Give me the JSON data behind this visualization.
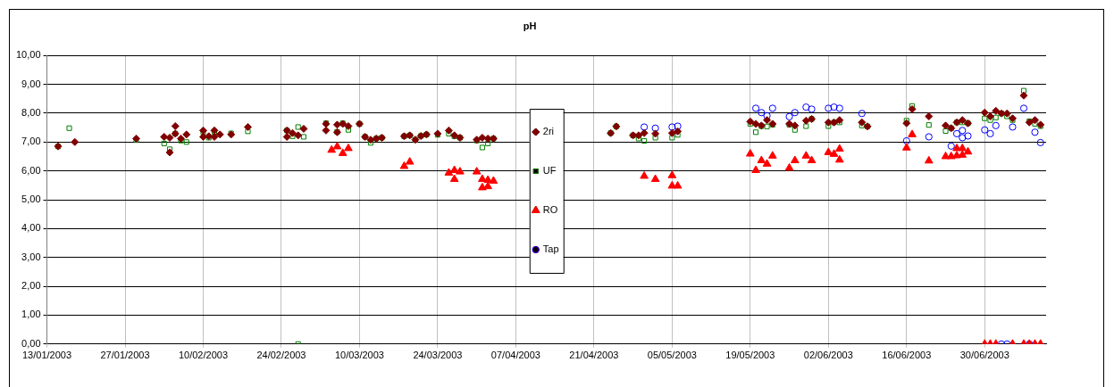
{
  "chart_data": {
    "type": "scatter",
    "title": "pH",
    "legend": "center",
    "grid": true,
    "xlim": [
      "2003-01-13",
      "2003-07-11"
    ],
    "xticks": [
      {
        "value": "2003-01-13",
        "label": "13/01/2003"
      },
      {
        "value": "2003-01-27",
        "label": "27/01/2003"
      },
      {
        "value": "2003-02-10",
        "label": "10/02/2003"
      },
      {
        "value": "2003-02-24",
        "label": "24/02/2003"
      },
      {
        "value": "2003-03-10",
        "label": "10/03/2003"
      },
      {
        "value": "2003-03-24",
        "label": "24/03/2003"
      },
      {
        "value": "2003-04-07",
        "label": "07/04/2003"
      },
      {
        "value": "2003-04-21",
        "label": "21/04/2003"
      },
      {
        "value": "2003-05-05",
        "label": "05/05/2003"
      },
      {
        "value": "2003-05-19",
        "label": "19/05/2003"
      },
      {
        "value": "2003-06-02",
        "label": "02/06/2003"
      },
      {
        "value": "2003-06-16",
        "label": "16/06/2003"
      },
      {
        "value": "2003-06-30",
        "label": "30/06/2003"
      }
    ],
    "ylim": [
      0,
      10
    ],
    "yticks": [
      {
        "value": 0,
        "label": "0,00"
      },
      {
        "value": 1,
        "label": "1,00"
      },
      {
        "value": 2,
        "label": "2,00"
      },
      {
        "value": 3,
        "label": "3,00"
      },
      {
        "value": 4,
        "label": "4,00"
      },
      {
        "value": 5,
        "label": "5,00"
      },
      {
        "value": 6,
        "label": "6,00"
      },
      {
        "value": 7,
        "label": "7,00"
      },
      {
        "value": 8,
        "label": "8,00"
      },
      {
        "value": 9,
        "label": "9,00"
      },
      {
        "value": 10,
        "label": "10,00"
      }
    ],
    "series": [
      {
        "name": "2ri",
        "color": "#800000",
        "marker": "diamond",
        "x": [
          "2003-01-15",
          "2003-01-18",
          "2003-01-29",
          "2003-02-03",
          "2003-02-04",
          "2003-02-04",
          "2003-02-05",
          "2003-02-05",
          "2003-02-06",
          "2003-02-07",
          "2003-02-10",
          "2003-02-10",
          "2003-02-11",
          "2003-02-12",
          "2003-02-12",
          "2003-02-13",
          "2003-02-15",
          "2003-02-18",
          "2003-02-25",
          "2003-02-25",
          "2003-02-26",
          "2003-02-27",
          "2003-02-28",
          "2003-03-04",
          "2003-03-04",
          "2003-03-06",
          "2003-03-06",
          "2003-03-07",
          "2003-03-08",
          "2003-03-10",
          "2003-03-11",
          "2003-03-12",
          "2003-03-13",
          "2003-03-14",
          "2003-03-18",
          "2003-03-19",
          "2003-03-20",
          "2003-03-21",
          "2003-03-22",
          "2003-03-24",
          "2003-03-26",
          "2003-03-27",
          "2003-03-28",
          "2003-03-31",
          "2003-04-01",
          "2003-04-02",
          "2003-04-03",
          "2003-04-24",
          "2003-04-25",
          "2003-04-28",
          "2003-04-29",
          "2003-04-30",
          "2003-05-02",
          "2003-05-05",
          "2003-05-06",
          "2003-05-19",
          "2003-05-20",
          "2003-05-21",
          "2003-05-22",
          "2003-05-23",
          "2003-05-26",
          "2003-05-27",
          "2003-05-29",
          "2003-05-30",
          "2003-06-02",
          "2003-06-03",
          "2003-06-04",
          "2003-06-08",
          "2003-06-09",
          "2003-06-16",
          "2003-06-17",
          "2003-06-20",
          "2003-06-23",
          "2003-06-24",
          "2003-06-25",
          "2003-06-26",
          "2003-06-27",
          "2003-06-30",
          "2003-07-01",
          "2003-07-02",
          "2003-07-03",
          "2003-07-04",
          "2003-07-05",
          "2003-07-07",
          "2003-07-08",
          "2003-07-09",
          "2003-07-10"
        ],
        "values": [
          6.85,
          7.0,
          7.12,
          7.18,
          7.15,
          6.64,
          7.55,
          7.29,
          7.12,
          7.26,
          7.4,
          7.18,
          7.2,
          7.4,
          7.18,
          7.26,
          7.26,
          7.52,
          7.4,
          7.18,
          7.31,
          7.23,
          7.46,
          7.63,
          7.4,
          7.6,
          7.34,
          7.63,
          7.55,
          7.63,
          7.18,
          7.08,
          7.12,
          7.15,
          7.2,
          7.23,
          7.08,
          7.21,
          7.26,
          7.29,
          7.4,
          7.23,
          7.15,
          7.08,
          7.15,
          7.12,
          7.12,
          7.31,
          7.54,
          7.23,
          7.23,
          7.31,
          7.29,
          7.31,
          7.37,
          7.71,
          7.63,
          7.57,
          7.76,
          7.63,
          7.63,
          7.57,
          7.74,
          7.8,
          7.68,
          7.68,
          7.76,
          7.68,
          7.54,
          7.65,
          8.14,
          7.89,
          7.57,
          7.48,
          7.68,
          7.76,
          7.65,
          8.02,
          7.89,
          8.08,
          7.99,
          7.99,
          7.82,
          8.61,
          7.68,
          7.76,
          7.6
        ]
      },
      {
        "name": "UF",
        "color": "#008000",
        "marker": "square",
        "x": [
          "2003-01-15",
          "2003-01-17",
          "2003-01-29",
          "2003-02-03",
          "2003-02-04",
          "2003-02-05",
          "2003-02-06",
          "2003-02-07",
          "2003-02-10",
          "2003-02-11",
          "2003-02-12",
          "2003-02-15",
          "2003-02-18",
          "2003-02-25",
          "2003-02-26",
          "2003-02-27",
          "2003-02-27",
          "2003-02-28",
          "2003-03-04",
          "2003-03-06",
          "2003-03-07",
          "2003-03-08",
          "2003-03-10",
          "2003-03-11",
          "2003-03-12",
          "2003-03-13",
          "2003-03-14",
          "2003-03-18",
          "2003-03-19",
          "2003-03-20",
          "2003-03-21",
          "2003-03-22",
          "2003-03-24",
          "2003-03-26",
          "2003-03-27",
          "2003-03-28",
          "2003-03-31",
          "2003-04-01",
          "2003-04-02",
          "2003-04-03",
          "2003-04-24",
          "2003-04-25",
          "2003-04-28",
          "2003-04-29",
          "2003-04-30",
          "2003-05-02",
          "2003-05-05",
          "2003-05-06",
          "2003-05-19",
          "2003-05-20",
          "2003-05-21",
          "2003-05-22",
          "2003-05-23",
          "2003-05-26",
          "2003-05-27",
          "2003-05-29",
          "2003-05-30",
          "2003-06-02",
          "2003-06-03",
          "2003-06-04",
          "2003-06-08",
          "2003-06-09",
          "2003-06-16",
          "2003-06-17",
          "2003-06-20",
          "2003-06-23",
          "2003-06-24",
          "2003-06-25",
          "2003-06-26",
          "2003-06-27",
          "2003-06-30",
          "2003-07-01",
          "2003-07-02",
          "2003-07-03",
          "2003-07-04",
          "2003-07-05",
          "2003-07-07",
          "2003-07-08",
          "2003-07-09",
          "2003-07-10"
        ],
        "values": [
          6.85,
          7.48,
          7.08,
          6.95,
          6.75,
          7.29,
          7.05,
          7.0,
          7.35,
          7.15,
          7.35,
          7.3,
          7.37,
          7.4,
          7.2,
          7.52,
          0,
          7.18,
          7.65,
          7.35,
          7.65,
          7.42,
          7.63,
          7.18,
          6.97,
          7.12,
          7.15,
          7.2,
          7.23,
          7.08,
          7.21,
          7.26,
          7.25,
          7.29,
          7.2,
          7.15,
          7.05,
          6.81,
          6.95,
          7.12,
          7.31,
          7.54,
          7.23,
          7.12,
          7.04,
          7.15,
          7.15,
          7.25,
          7.63,
          7.34,
          7.55,
          7.54,
          7.6,
          7.6,
          7.42,
          7.55,
          7.8,
          7.55,
          7.68,
          7.68,
          7.57,
          7.54,
          7.74,
          8.25,
          7.59,
          7.38,
          7.48,
          7.68,
          7.68,
          7.65,
          7.82,
          7.76,
          7.85,
          7.99,
          7.89,
          7.76,
          8.78,
          7.72,
          7.63,
          7.55
        ]
      },
      {
        "name": "RO",
        "color": "#ff0000",
        "marker": "triangle",
        "x": [
          "2003-03-05",
          "2003-03-06",
          "2003-03-07",
          "2003-03-08",
          "2003-03-18",
          "2003-03-19",
          "2003-03-26",
          "2003-03-27",
          "2003-03-27",
          "2003-03-28",
          "2003-03-31",
          "2003-04-01",
          "2003-04-01",
          "2003-04-02",
          "2003-04-02",
          "2003-04-03",
          "2003-04-30",
          "2003-05-02",
          "2003-05-05",
          "2003-05-05",
          "2003-05-06",
          "2003-05-19",
          "2003-05-20",
          "2003-05-21",
          "2003-05-22",
          "2003-05-23",
          "2003-05-26",
          "2003-05-27",
          "2003-05-29",
          "2003-05-30",
          "2003-06-02",
          "2003-06-03",
          "2003-06-04",
          "2003-06-04",
          "2003-06-16",
          "2003-06-17",
          "2003-06-20",
          "2003-06-23",
          "2003-06-24",
          "2003-06-25",
          "2003-06-25",
          "2003-06-26",
          "2003-06-26",
          "2003-06-27",
          "2003-06-30",
          "2003-07-01",
          "2003-07-02",
          "2003-07-05",
          "2003-07-07",
          "2003-07-08",
          "2003-07-09",
          "2003-07-10"
        ],
        "values": [
          6.72,
          6.84,
          6.61,
          6.78,
          6.16,
          6.31,
          5.93,
          6.02,
          5.71,
          5.97,
          5.97,
          5.71,
          5.42,
          5.68,
          5.46,
          5.65,
          5.82,
          5.71,
          5.84,
          5.48,
          5.48,
          6.59,
          6.02,
          6.36,
          6.24,
          6.52,
          6.1,
          6.36,
          6.52,
          6.36,
          6.64,
          6.58,
          6.76,
          6.38,
          6.8,
          7.26,
          6.35,
          6.5,
          6.5,
          6.78,
          6.53,
          6.78,
          6.55,
          6.66,
          0,
          0,
          0,
          0,
          0,
          0,
          0,
          0
        ]
      },
      {
        "name": "Tap",
        "color": "#0000ff",
        "marker": "circle",
        "x": [
          "2003-04-30",
          "2003-05-02",
          "2003-05-05",
          "2003-05-06",
          "2003-05-20",
          "2003-05-21",
          "2003-05-22",
          "2003-05-23",
          "2003-05-26",
          "2003-05-27",
          "2003-05-29",
          "2003-05-30",
          "2003-06-02",
          "2003-06-03",
          "2003-06-04",
          "2003-06-08",
          "2003-06-16",
          "2003-06-20",
          "2003-06-24",
          "2003-06-25",
          "2003-06-26",
          "2003-06-26",
          "2003-06-27",
          "2003-06-30",
          "2003-07-01",
          "2003-07-02",
          "2003-07-03",
          "2003-07-04",
          "2003-07-05",
          "2003-07-07",
          "2003-07-08",
          "2003-07-09",
          "2003-07-10"
        ],
        "values": [
          7.52,
          7.48,
          7.52,
          7.55,
          8.17,
          8.02,
          7.91,
          8.17,
          7.88,
          8.02,
          8.21,
          8.14,
          8.17,
          8.21,
          8.17,
          7.99,
          7.04,
          7.18,
          6.86,
          7.29,
          7.4,
          7.15,
          7.21,
          7.42,
          7.29,
          7.57,
          0,
          0,
          7.52,
          8.17,
          0,
          7.34,
          6.98
        ]
      }
    ]
  }
}
